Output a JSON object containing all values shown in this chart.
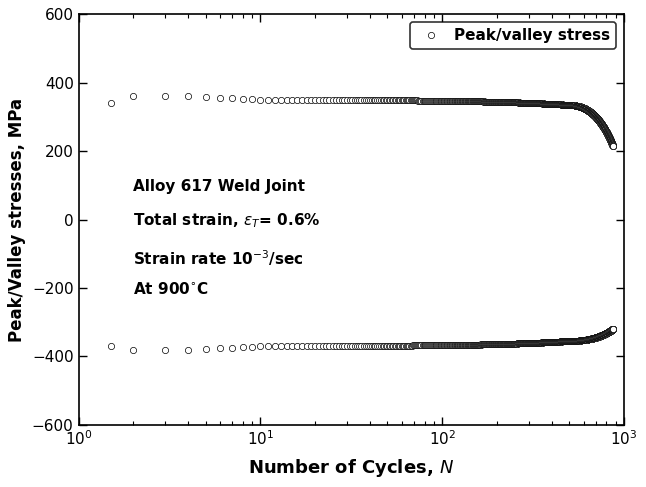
{
  "title": "",
  "xlabel": "Number of Cycles, $\\it{N}$",
  "ylabel": "Peak/Valley stresses, MPa",
  "legend_label": "Peak/valley stress",
  "xlim": [
    1,
    1000
  ],
  "ylim": [
    -600,
    600
  ],
  "yticks": [
    -600,
    -400,
    -200,
    0,
    200,
    400,
    600
  ],
  "annotation_lines": [
    "Alloy 617 Weld Joint",
    "Total strain, $\\varepsilon_{T}$= 0.6%",
    "Strain rate 10$^{-3}$/sec",
    "At 900$^{\\circ}$C"
  ],
  "marker_color": "black",
  "marker_face": "white",
  "marker_size": 4.5,
  "background_color": "white",
  "N_total": 870,
  "peak_cycle1": 340,
  "peak_cycle2": 360,
  "peak_stable": 350,
  "peak_softening_start": 500,
  "peak_final": 215,
  "valley_cycle1": -370,
  "valley_cycle2": -380,
  "valley_stable": -370,
  "valley_softening_start": 500,
  "valley_final": -320
}
